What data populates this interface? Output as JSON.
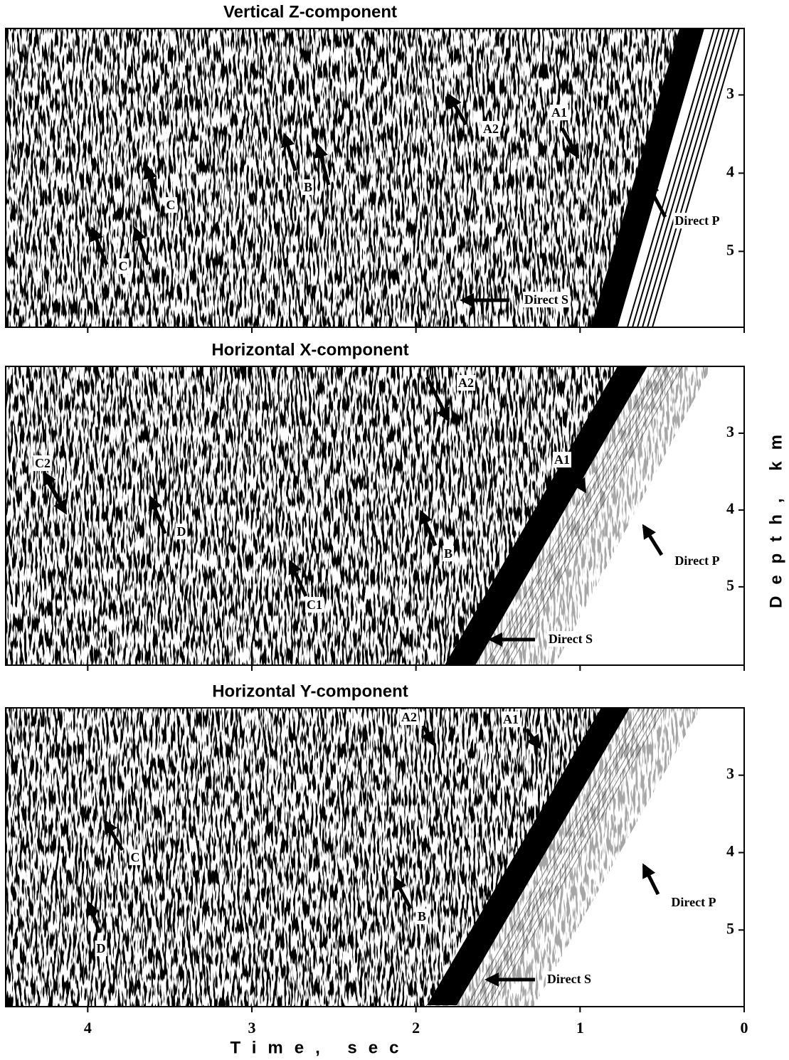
{
  "chart_data": [
    {
      "type": "seismogram",
      "title": "Vertical  Z-component",
      "xlim": [
        4.5,
        0
      ],
      "xticks": [
        4,
        3,
        2,
        1,
        0
      ],
      "xtick_labels": false,
      "ylim": [
        2.15,
        5.97
      ],
      "yticks": [
        3,
        4,
        5
      ],
      "annotations": [
        "A1",
        "A2",
        "B",
        "C",
        "C",
        "Direct P",
        "Direct S"
      ]
    },
    {
      "type": "seismogram",
      "title": "Horizontal  X-component",
      "xlim": [
        4.5,
        0
      ],
      "xticks": [
        4,
        3,
        2,
        1,
        0
      ],
      "xtick_labels": false,
      "ylim": [
        2.13,
        6.02
      ],
      "yticks": [
        3,
        4,
        5
      ],
      "ylabel": "Depth, km",
      "annotations": [
        "A2",
        "A1",
        "C2",
        "D",
        "B",
        "C1",
        "Direct P",
        "Direct S"
      ]
    },
    {
      "type": "seismogram",
      "title": "Horizontal  Y-component",
      "xlim": [
        4.5,
        0
      ],
      "xticks": [
        4,
        3,
        2,
        1,
        0
      ],
      "xtick_labels": true,
      "ylim": [
        2.13,
        5.99
      ],
      "yticks": [
        3,
        4,
        5
      ],
      "xlabel": "Time, sec",
      "annotations": [
        "A2",
        "A1",
        "C",
        "D",
        "B",
        "Direct P",
        "Direct S"
      ]
    }
  ]
}
